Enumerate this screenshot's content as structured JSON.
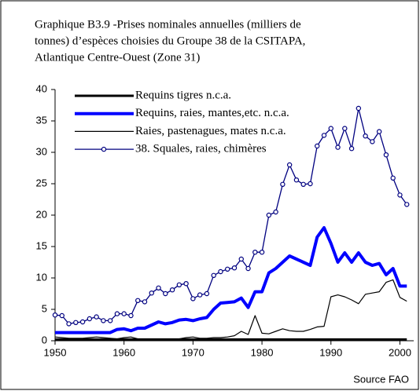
{
  "chart_data": {
    "type": "line",
    "title": [
      "Graphique B3.9 -Prises nominales annuelles (milliers de",
      "tonnes) d’espèces choisies du Groupe 38 de la CSITAPA,",
      "Atlantique Centre-Ouest (Zone 31)"
    ],
    "source": "Source FAO",
    "x": [
      1950,
      1951,
      1952,
      1953,
      1954,
      1955,
      1956,
      1957,
      1958,
      1959,
      1960,
      1961,
      1962,
      1963,
      1964,
      1965,
      1966,
      1967,
      1968,
      1969,
      1970,
      1971,
      1972,
      1973,
      1974,
      1975,
      1976,
      1977,
      1978,
      1979,
      1980,
      1981,
      1982,
      1983,
      1984,
      1985,
      1986,
      1987,
      1988,
      1989,
      1990,
      1991,
      1992,
      1993,
      1994,
      1995,
      1996,
      1997,
      1998,
      1999,
      2000,
      2001
    ],
    "series": [
      {
        "name": "Requins tigres n.c.a.",
        "color": "#000000",
        "width": 3,
        "markers": false,
        "values": [
          0.2,
          0.2,
          0.2,
          0.2,
          0.2,
          0.2,
          0.2,
          0.2,
          0.2,
          0.2,
          0.2,
          0.2,
          0.2,
          0.2,
          0.2,
          0.2,
          0.2,
          0.2,
          0.2,
          0.2,
          0.2,
          0.2,
          0.2,
          0.2,
          0.2,
          0.2,
          0.2,
          0.2,
          0.2,
          0.2,
          0.2,
          0.2,
          0.2,
          0.2,
          0.2,
          0.2,
          0.2,
          0.2,
          0.2,
          0.2,
          0.2,
          0.2,
          0.2,
          0.2,
          0.2,
          0.2,
          0.2,
          0.2,
          0.2,
          0.2,
          0.2,
          0.2
        ]
      },
      {
        "name": "Requins, raies, mantes,etc. n.c.a.",
        "color": "#0000ff",
        "width": 4,
        "markers": false,
        "values": [
          1.3,
          1.3,
          1.3,
          1.3,
          1.3,
          1.3,
          1.3,
          1.3,
          1.3,
          1.8,
          1.9,
          1.6,
          2.0,
          2.0,
          2.5,
          3.0,
          2.7,
          2.9,
          3.3,
          3.4,
          3.2,
          3.5,
          3.7,
          5.0,
          6.0,
          6.1,
          6.2,
          6.8,
          5.3,
          7.8,
          7.8,
          10.8,
          11.5,
          12.5,
          13.5,
          13.0,
          12.5,
          12.0,
          16.5,
          18.0,
          15.5,
          12.5,
          14.0,
          12.5,
          14.0,
          12.5,
          12.0,
          12.3,
          10.5,
          11.5,
          8.7,
          8.7
        ]
      },
      {
        "name": "Raies, pastenagues, mates n.c.a.",
        "color": "#000000",
        "width": 1.2,
        "markers": false,
        "values": [
          0.6,
          0.5,
          0.4,
          0.4,
          0.4,
          0.5,
          0.6,
          0.5,
          0.4,
          0.3,
          0.5,
          0.6,
          0.3,
          0.3,
          0.2,
          0.2,
          0.3,
          0.2,
          0.3,
          0.5,
          0.6,
          0.4,
          0.4,
          0.5,
          0.5,
          0.6,
          0.8,
          1.5,
          1.0,
          4.0,
          1.2,
          1.1,
          1.5,
          1.9,
          1.6,
          1.5,
          1.5,
          1.8,
          2.2,
          2.3,
          7.0,
          7.3,
          7.0,
          6.5,
          5.9,
          7.4,
          7.6,
          7.8,
          9.3,
          9.7,
          6.9,
          6.3
        ]
      },
      {
        "name": "38. Squales, raies, chimères",
        "color": "#000080",
        "width": 1.3,
        "markers": true,
        "values": [
          4.1,
          4.0,
          2.7,
          2.9,
          3.0,
          3.5,
          3.8,
          3.2,
          3.2,
          4.3,
          4.3,
          4.0,
          6.4,
          6.2,
          7.6,
          8.4,
          7.5,
          8.1,
          8.9,
          9.1,
          6.7,
          7.3,
          7.5,
          10.4,
          11.0,
          11.4,
          11.6,
          13.0,
          11.5,
          14.1,
          14.1,
          20.0,
          20.5,
          24.9,
          28.0,
          25.6,
          24.9,
          25.0,
          31.0,
          32.7,
          33.8,
          30.8,
          33.8,
          30.6,
          37.0,
          32.6,
          31.7,
          33.3,
          29.6,
          25.9,
          23.2,
          21.7
        ]
      }
    ],
    "xlim": [
      1950,
      2002
    ],
    "xticks": [
      1950,
      1960,
      1970,
      1980,
      1990,
      2000
    ],
    "ylim": [
      0,
      40
    ],
    "yticks": [
      0,
      5,
      10,
      15,
      20,
      25,
      30,
      35,
      40
    ]
  }
}
